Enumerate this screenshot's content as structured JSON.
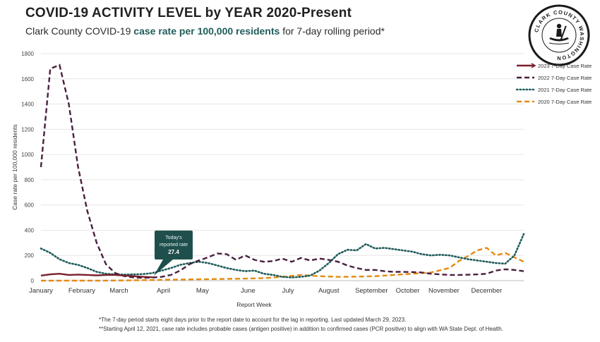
{
  "header": {
    "title": "COVID-19 ACTIVITY LEVEL by YEAR 2020-Present",
    "subtitle_prefix": "Clark County COVID-19 ",
    "subtitle_highlight": "case rate per 100,000 residents",
    "subtitle_suffix": " for 7-day rolling period*"
  },
  "logo": {
    "text": "CLARK COUNTY WASHINGTON"
  },
  "footnotes": [
    "*The 7-day period starts eight days prior to the report date to account for the lag in reporting. Last updated March 29, 2023.",
    "**Starting April 12, 2021, case rate includes probable cases (antigen positive) in addition to confirmed cases (PCR positive) to align with WA State Dept. of Health."
  ],
  "chart_data": {
    "type": "line",
    "title": "COVID-19 ACTIVITY LEVEL by YEAR 2020-Present",
    "xlabel": "Report Week",
    "ylabel": "Case rate per 100,000 residents",
    "ylim": [
      0,
      1800
    ],
    "xlim": [
      0,
      52
    ],
    "yticks": [
      0,
      200,
      400,
      600,
      800,
      1000,
      1200,
      1400,
      1600,
      1800
    ],
    "months": [
      {
        "label": "January",
        "week": 0
      },
      {
        "label": "February",
        "week": 4.4
      },
      {
        "label": "March",
        "week": 8.4
      },
      {
        "label": "April",
        "week": 13.2
      },
      {
        "label": "May",
        "week": 17.4
      },
      {
        "label": "June",
        "week": 22.3
      },
      {
        "label": "July",
        "week": 26.6
      },
      {
        "label": "August",
        "week": 31.0
      },
      {
        "label": "September",
        "week": 35.6
      },
      {
        "label": "October",
        "week": 39.5
      },
      {
        "label": "November",
        "week": 43.4
      },
      {
        "label": "December",
        "week": 48.0
      }
    ],
    "legend": {
      "placement": "right"
    },
    "annotation": {
      "line1": "Today's",
      "line2": "reported rate",
      "value": "27.4",
      "week": 12,
      "y": 27.4
    },
    "series": [
      {
        "name": "2023 7-Day Case Rate",
        "color": "#7a1f2b",
        "style": "solid",
        "x": [
          0,
          1,
          2,
          3,
          4,
          5,
          6,
          7,
          8,
          9,
          10,
          11,
          12
        ],
        "values": [
          40,
          50,
          55,
          45,
          48,
          45,
          42,
          45,
          45,
          40,
          35,
          30,
          27
        ]
      },
      {
        "name": "2022 7-Day Case Rate",
        "color": "#4a1f3f",
        "style": "dashed",
        "x": [
          0,
          1,
          2,
          3,
          4,
          5,
          6,
          7,
          8,
          9,
          10,
          11,
          12,
          13,
          14,
          15,
          16,
          17,
          18,
          19,
          20,
          21,
          22,
          23,
          24,
          25,
          26,
          27,
          28,
          29,
          30,
          31,
          32,
          33,
          34,
          35,
          36,
          37,
          38,
          39,
          40,
          41,
          42,
          43,
          44,
          45,
          46,
          47,
          48,
          49,
          50,
          51,
          52
        ],
        "values": [
          900,
          1680,
          1710,
          1400,
          900,
          550,
          300,
          130,
          60,
          35,
          25,
          22,
          25,
          30,
          45,
          80,
          130,
          160,
          185,
          215,
          210,
          165,
          200,
          165,
          150,
          155,
          175,
          150,
          180,
          160,
          175,
          165,
          150,
          120,
          100,
          85,
          85,
          75,
          70,
          70,
          68,
          65,
          55,
          50,
          45,
          45,
          47,
          50,
          55,
          80,
          90,
          85,
          75
        ]
      },
      {
        "name": "2021 7-Day Case Rate",
        "color": "#1f5c5a",
        "style": "dotted",
        "x": [
          0,
          1,
          2,
          3,
          4,
          5,
          6,
          7,
          8,
          9,
          10,
          11,
          12,
          13,
          14,
          15,
          16,
          17,
          18,
          19,
          20,
          21,
          22,
          23,
          24,
          25,
          26,
          27,
          28,
          29,
          30,
          31,
          32,
          33,
          34,
          35,
          36,
          37,
          38,
          39,
          40,
          41,
          42,
          43,
          44,
          45,
          46,
          47,
          48,
          49,
          50,
          51,
          52
        ],
        "values": [
          255,
          220,
          170,
          140,
          125,
          100,
          70,
          55,
          50,
          48,
          50,
          52,
          60,
          80,
          100,
          125,
          140,
          150,
          140,
          120,
          100,
          85,
          75,
          80,
          55,
          45,
          30,
          25,
          30,
          40,
          80,
          140,
          210,
          245,
          240,
          290,
          255,
          260,
          250,
          240,
          230,
          210,
          200,
          205,
          200,
          185,
          170,
          160,
          150,
          140,
          135,
          200,
          370
        ]
      },
      {
        "name": "2020 7-Day Case Rate",
        "color": "#e58a12",
        "style": "dashed",
        "x": [
          0,
          2,
          4,
          6,
          8,
          10,
          12,
          14,
          16,
          18,
          20,
          22,
          24,
          26,
          28,
          30,
          32,
          34,
          36,
          38,
          40,
          42,
          44,
          45,
          46,
          47,
          48,
          49,
          50,
          51,
          52
        ],
        "values": [
          0,
          0,
          0,
          0,
          1,
          3,
          5,
          8,
          10,
          12,
          14,
          16,
          20,
          30,
          45,
          35,
          30,
          32,
          35,
          45,
          55,
          65,
          100,
          155,
          195,
          240,
          260,
          200,
          220,
          185,
          150
        ]
      }
    ]
  }
}
